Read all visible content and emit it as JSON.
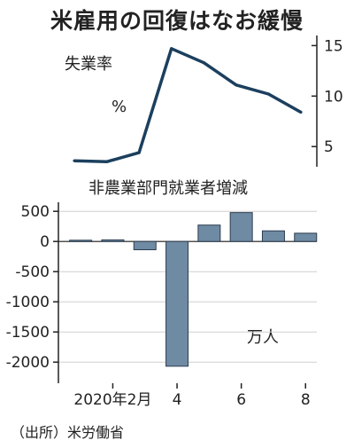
{
  "title": "米雇用の回復はなお緩慢",
  "source": "（出所）米労働省",
  "chart_data": [
    {
      "type": "line",
      "title": "失業率",
      "unit": "%",
      "x": [
        "2020-01",
        "2020-02",
        "2020-03",
        "2020-04",
        "2020-05",
        "2020-06",
        "2020-07",
        "2020-08"
      ],
      "values": [
        3.6,
        3.5,
        4.4,
        14.7,
        13.3,
        11.1,
        10.2,
        8.4
      ],
      "ylim": [
        3,
        16
      ],
      "yticks": [
        5,
        10,
        15
      ],
      "ytick_labels": [
        "5",
        "10",
        "15"
      ],
      "axis_side": "right",
      "color": "#1c3f5e"
    },
    {
      "type": "bar",
      "title": "非農業部門就業者増減",
      "unit": "万人",
      "x": [
        "2020-01",
        "2020-02",
        "2020-03",
        "2020-04",
        "2020-05",
        "2020-06",
        "2020-07",
        "2020-08"
      ],
      "values": [
        21,
        27,
        -137,
        -2068,
        272,
        479,
        176,
        137
      ],
      "ylim": [
        -2350,
        650
      ],
      "yticks": [
        500,
        0,
        -500,
        -1000,
        -1500,
        -2000
      ],
      "ytick_labels": [
        "500",
        "0",
        "-500",
        "-1000",
        "-1500",
        "-2000"
      ],
      "xtick_labels": [
        "2020年2月",
        "4",
        "6",
        "8"
      ],
      "xtick_positions": [
        "2020-02",
        "2020-04",
        "2020-06",
        "2020-08"
      ],
      "grid": true,
      "color": "#6f8aa3"
    }
  ]
}
